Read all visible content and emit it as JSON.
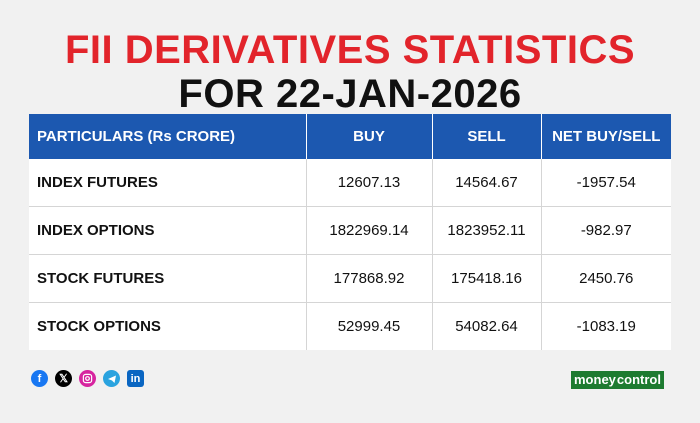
{
  "title": {
    "line1": "FII DERIVATIVES STATISTICS",
    "line2": "FOR 22-JAN-2026"
  },
  "table": {
    "headers": [
      "PARTICULARS (Rs CRORE)",
      "BUY",
      "SELL",
      "NET BUY/SELL"
    ],
    "rows": [
      [
        "INDEX FUTURES",
        "12607.13",
        "14564.67",
        "-1957.54"
      ],
      [
        "INDEX OPTIONS",
        "1822969.14",
        "1823952.11",
        "-982.97"
      ],
      [
        "STOCK FUTURES",
        "177868.92",
        "175418.16",
        "2450.76"
      ],
      [
        "STOCK OPTIONS",
        "52999.45",
        "54082.64",
        "-1083.19"
      ]
    ]
  },
  "social_icons": [
    "facebook-icon",
    "x-icon",
    "instagram-icon",
    "telegram-icon",
    "linkedin-icon"
  ],
  "brand": {
    "part1": "money",
    "part2": "control"
  },
  "colors": {
    "title_red": "#e2242b",
    "header_blue": "#1c58b0",
    "brand_green": "#1d7b30",
    "background": "#f1f1f1"
  }
}
